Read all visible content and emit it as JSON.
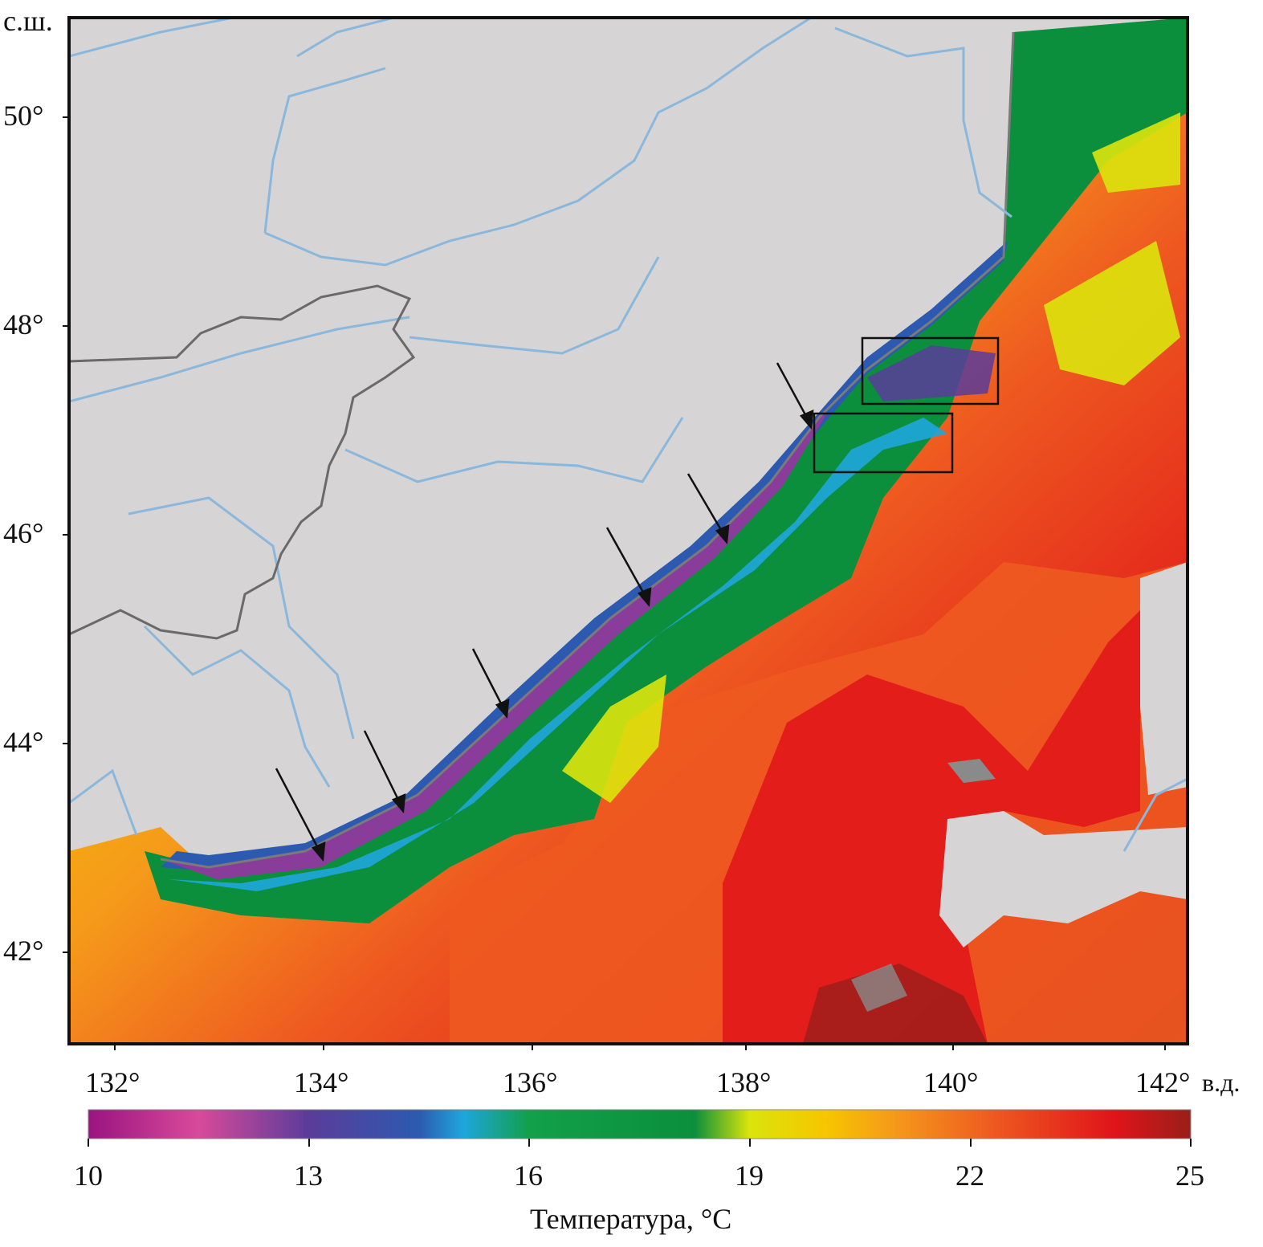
{
  "map": {
    "lat_unit": "с.ш.",
    "lon_unit": "в.д.",
    "lat_labels": [
      "50°",
      "48°",
      "46°",
      "44°",
      "42°"
    ],
    "lon_labels": [
      "132°",
      "134°",
      "136°",
      "138°",
      "140°",
      "142°"
    ],
    "lon_range": [
      131.55,
      142.2
    ],
    "lat_range": [
      41.1,
      50.95
    ]
  },
  "colorbar": {
    "title": "Температура, °С",
    "ticks": [
      "10",
      "13",
      "16",
      "19",
      "22",
      "25"
    ],
    "range": [
      10,
      25
    ],
    "colors": [
      "#9a1480",
      "#d84a9a",
      "#5b3c9a",
      "#2c5ab0",
      "#1ea6dc",
      "#12a04a",
      "#0b8f3c",
      "#dbe40c",
      "#f7c500",
      "#f59a1a",
      "#ee5a20",
      "#e0141a",
      "#9a1e1a"
    ]
  },
  "legend_colors": {
    "land": "#d6d4d5",
    "rivers": "#8ab8dc",
    "border": "#6a6a6a",
    "no_data": "#8a8a8a"
  }
}
